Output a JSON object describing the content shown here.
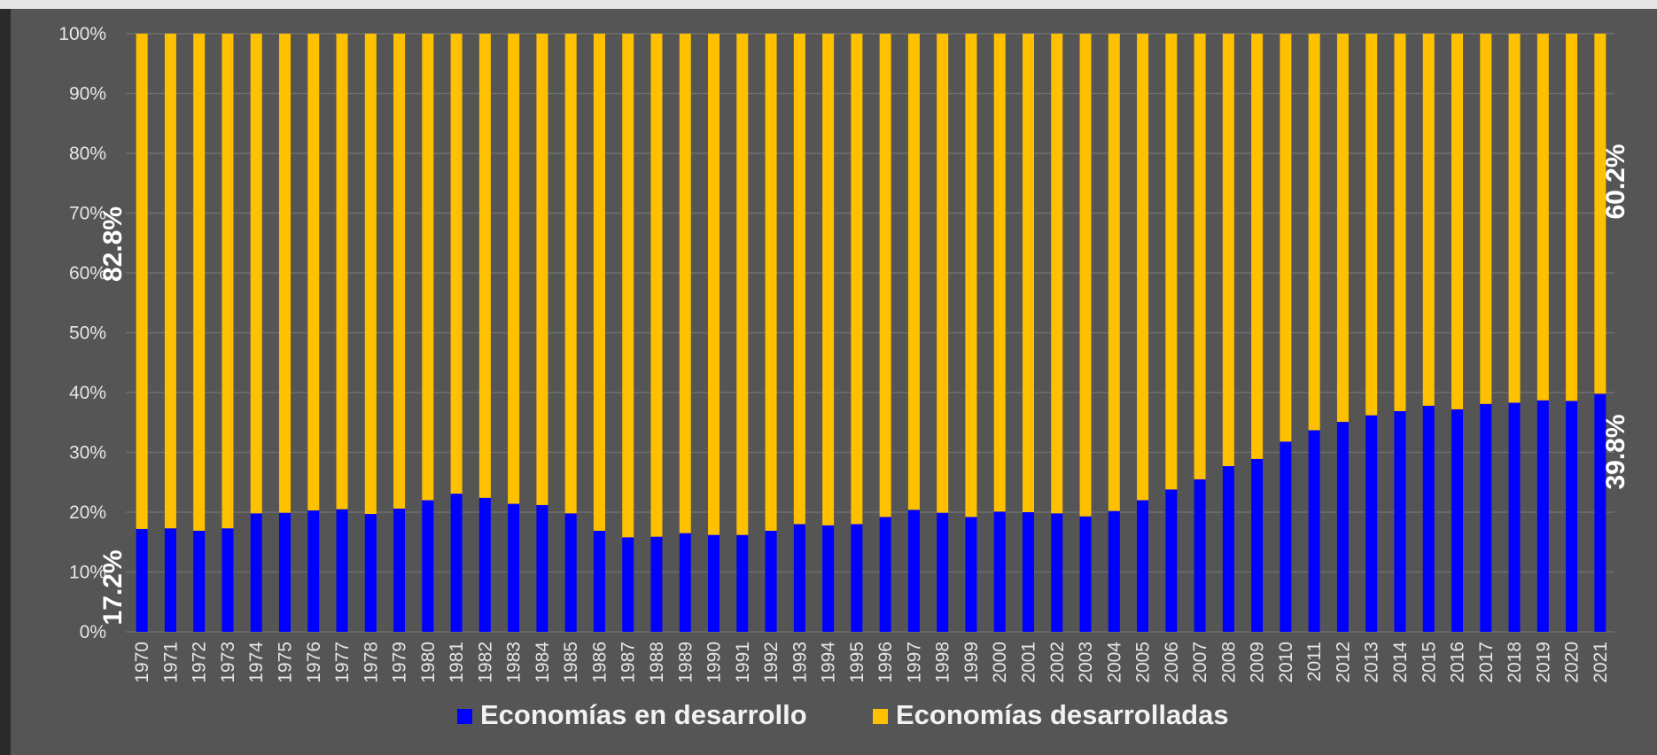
{
  "chart_data": {
    "type": "bar",
    "stacked": true,
    "percent": true,
    "categories": [
      "1970",
      "1971",
      "1972",
      "1973",
      "1974",
      "1975",
      "1976",
      "1977",
      "1978",
      "1979",
      "1980",
      "1981",
      "1982",
      "1983",
      "1984",
      "1985",
      "1986",
      "1987",
      "1988",
      "1989",
      "1990",
      "1991",
      "1992",
      "1993",
      "1994",
      "1995",
      "1996",
      "1997",
      "1998",
      "1999",
      "2000",
      "2001",
      "2002",
      "2003",
      "2004",
      "2005",
      "2006",
      "2007",
      "2008",
      "2009",
      "2010",
      "2011",
      "2012",
      "2013",
      "2014",
      "2015",
      "2016",
      "2017",
      "2018",
      "2019",
      "2020",
      "2021"
    ],
    "series": [
      {
        "name": "Economías en desarrollo",
        "color": "#0000ff",
        "values": [
          17.2,
          17.3,
          16.9,
          17.3,
          19.8,
          19.9,
          20.3,
          20.5,
          19.7,
          20.6,
          22.0,
          23.1,
          22.4,
          21.4,
          21.2,
          19.8,
          16.9,
          15.8,
          15.9,
          16.5,
          16.2,
          16.2,
          16.9,
          18.0,
          17.8,
          18.0,
          19.2,
          20.4,
          19.9,
          19.2,
          20.1,
          20.0,
          19.8,
          19.3,
          20.2,
          22.0,
          23.8,
          25.5,
          27.7,
          28.9,
          31.8,
          33.7,
          35.1,
          36.2,
          36.9,
          37.8,
          37.2,
          38.1,
          38.3,
          38.7,
          38.6,
          39.8
        ]
      },
      {
        "name": "Economías desarrolladas",
        "color": "#ffc000",
        "values": [
          82.8,
          82.7,
          83.1,
          82.7,
          80.2,
          80.1,
          79.7,
          79.5,
          80.3,
          79.4,
          78.0,
          76.9,
          77.6,
          78.6,
          78.8,
          80.2,
          83.1,
          84.2,
          84.1,
          83.5,
          83.8,
          83.8,
          83.1,
          82.0,
          82.2,
          82.0,
          80.8,
          79.6,
          80.1,
          80.8,
          79.9,
          80.0,
          80.2,
          80.7,
          79.8,
          78.0,
          76.2,
          74.5,
          72.3,
          71.1,
          68.2,
          66.3,
          64.9,
          63.8,
          63.1,
          62.2,
          62.8,
          61.9,
          61.7,
          61.3,
          61.4,
          60.2
        ]
      }
    ],
    "y_ticks": [
      "0%",
      "10%",
      "20%",
      "30%",
      "40%",
      "50%",
      "60%",
      "70%",
      "80%",
      "90%",
      "100%"
    ],
    "ylim": [
      0,
      100
    ],
    "grid": true,
    "legend_position": "bottom",
    "annotations": {
      "first_desarrolladas": "82.8%",
      "first_desarrollo": "17.2%",
      "last_desarrolladas": "60.2%",
      "last_desarrollo": "39.8%"
    },
    "colors": {
      "background": "#555555",
      "gridline": "#6e6e6e"
    }
  }
}
